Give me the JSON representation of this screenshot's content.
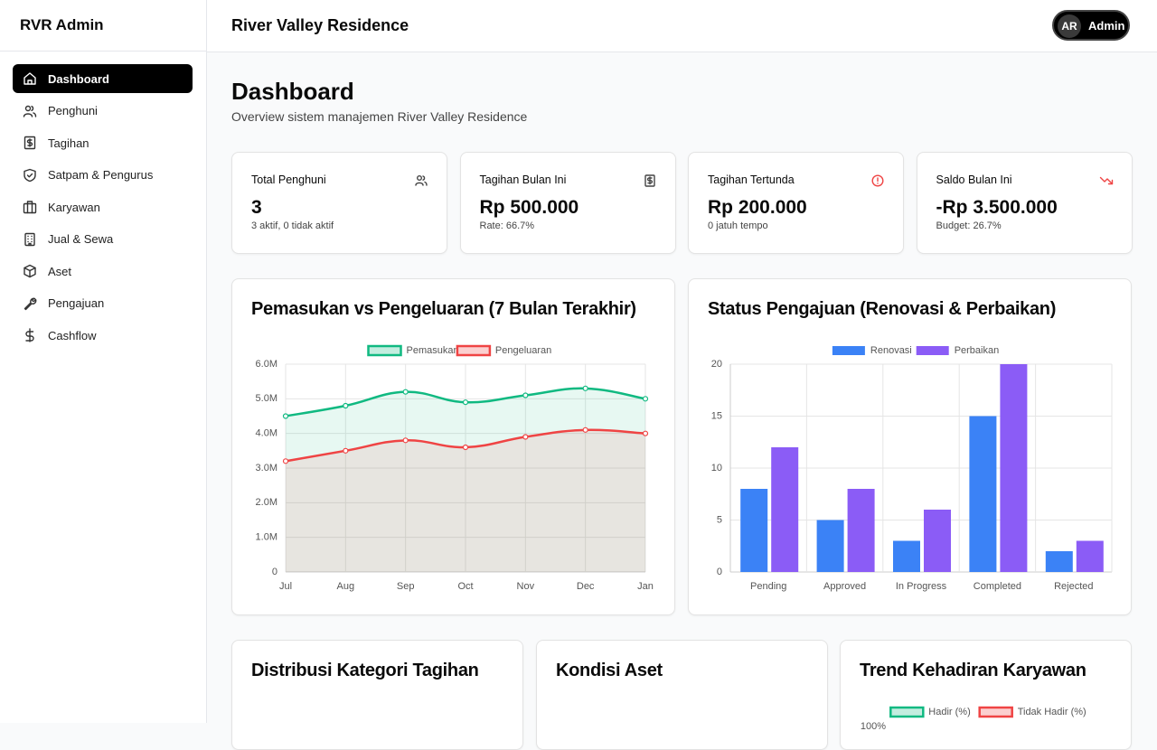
{
  "sidebar": {
    "brand": "RVR Admin",
    "nav": [
      "Dashboard",
      "Penghuni",
      "Tagihan",
      "Satpam & Pengurus",
      "Karyawan",
      "Jual & Sewa",
      "Aset",
      "Pengajuan",
      "Cashflow"
    ]
  },
  "header": {
    "title": "River Valley Residence",
    "avatar": "AR",
    "user": "Admin"
  },
  "page": {
    "title": "Dashboard",
    "subtitle": "Overview sistem manajemen River Valley Residence"
  },
  "stats": [
    {
      "label": "Total Penghuni",
      "value": "3",
      "note": "3 aktif, 0 tidak aktif"
    },
    {
      "label": "Tagihan Bulan Ini",
      "value": "Rp 500.000",
      "note": "Rate: 66.7%"
    },
    {
      "label": "Tagihan Tertunda",
      "value": "Rp 200.000",
      "note": "0 jatuh tempo"
    },
    {
      "label": "Saldo Bulan Ini",
      "value": "-Rp 3.500.000",
      "note": "Budget: 26.7%"
    }
  ],
  "panels": [
    {
      "title": "Distribusi Kategori Tagihan"
    },
    {
      "title": "Kondisi Aset"
    }
  ],
  "chart_data": [
    {
      "type": "line",
      "title": "Pemasukan vs Pengeluaran (7 Bulan Terakhir)",
      "categories": [
        "Jul",
        "Aug",
        "Sep",
        "Oct",
        "Nov",
        "Dec",
        "Jan"
      ],
      "series": [
        {
          "name": "Pemasukan",
          "color": "#10b981",
          "values": [
            4500000,
            4800000,
            5200000,
            4900000,
            5100000,
            5300000,
            5000000
          ]
        },
        {
          "name": "Pengeluaran",
          "color": "#ef4444",
          "values": [
            3200000,
            3500000,
            3800000,
            3600000,
            3900000,
            4100000,
            4000000
          ]
        }
      ],
      "ylim": [
        0,
        6000000
      ],
      "yticks": [
        0,
        {
          "value": 1000000,
          "label": "1.0M"
        },
        {
          "value": 2000000,
          "label": "2.0M"
        },
        {
          "value": 3000000,
          "label": "3.0M"
        },
        {
          "value": 4000000,
          "label": "4.0M"
        },
        {
          "value": 5000000,
          "label": "5.0M"
        },
        {
          "value": 6000000,
          "label": "6.0M"
        }
      ],
      "grid": true
    },
    {
      "type": "bar",
      "title": "Status Pengajuan (Renovasi & Perbaikan)",
      "categories": [
        "Pending",
        "Approved",
        "In Progress",
        "Completed",
        "Rejected"
      ],
      "series": [
        {
          "name": "Renovasi",
          "color": "#3b82f6",
          "values": [
            8,
            5,
            3,
            15,
            2
          ]
        },
        {
          "name": "Perbaikan",
          "color": "#8b5cf6",
          "values": [
            12,
            8,
            6,
            20,
            3
          ]
        }
      ],
      "ylim": [
        0,
        20
      ],
      "yticks": [
        0,
        5,
        10,
        15,
        20
      ],
      "grid": true
    },
    {
      "type": "line",
      "title": "Trend Kehadiran Karyawan",
      "series": [
        {
          "name": "Hadir (%)",
          "color": "#10b981"
        },
        {
          "name": "Tidak Hadir (%)",
          "color": "#ef4444"
        }
      ],
      "yticks": [
        {
          "value": 100,
          "label": "100%"
        }
      ]
    }
  ]
}
